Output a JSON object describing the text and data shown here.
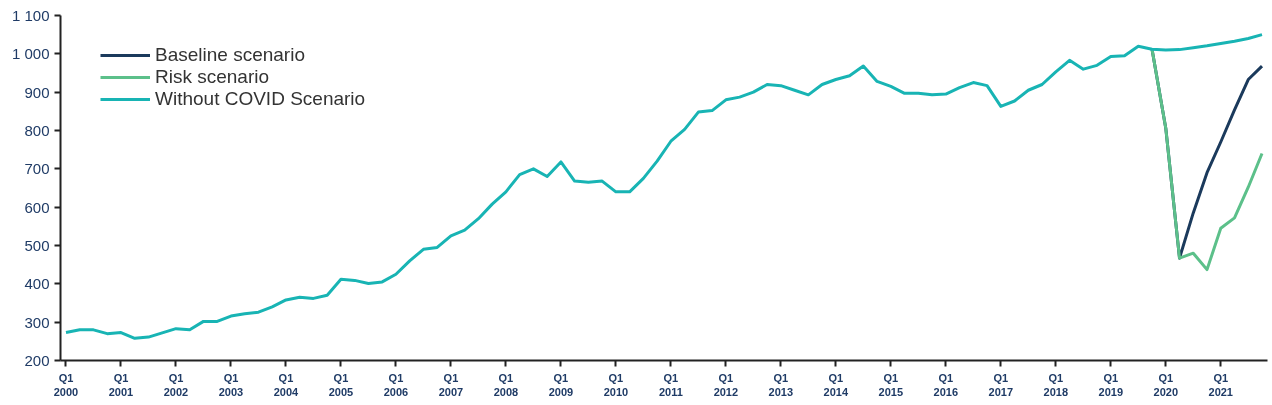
{
  "chart_data": {
    "type": "line",
    "categories": [
      "Q1\n2000",
      null,
      null,
      null,
      "Q1\n2001",
      null,
      null,
      null,
      "Q1\n2002",
      null,
      null,
      null,
      "Q1\n2003",
      null,
      null,
      null,
      "Q1\n2004",
      null,
      null,
      null,
      "Q1\n2005",
      null,
      null,
      null,
      "Q1\n2006",
      null,
      null,
      null,
      "Q1\n2007",
      null,
      null,
      null,
      "Q1\n2008",
      null,
      null,
      null,
      "Q1\n2009",
      null,
      null,
      null,
      "Q1\n2010",
      null,
      null,
      null,
      "Q1\n2011",
      null,
      null,
      null,
      "Q1\n2012",
      null,
      null,
      null,
      "Q1\n2013",
      null,
      null,
      null,
      "Q1\n2014",
      null,
      null,
      null,
      "Q1\n2015",
      null,
      null,
      null,
      "Q1\n2016",
      null,
      null,
      null,
      "Q1\n2017",
      null,
      null,
      null,
      "Q1\n2018",
      null,
      null,
      null,
      "Q1\n2019",
      null,
      null,
      null,
      "Q1\n2020",
      null,
      null,
      null,
      "Q1\n2021",
      null,
      null,
      null
    ],
    "series": [
      {
        "name": "Baseline scenario",
        "color": "#1b3a5c",
        "values": [
          null,
          null,
          null,
          null,
          null,
          null,
          null,
          null,
          null,
          null,
          null,
          null,
          null,
          null,
          null,
          null,
          null,
          null,
          null,
          null,
          null,
          null,
          null,
          null,
          null,
          null,
          null,
          null,
          null,
          null,
          null,
          null,
          null,
          null,
          null,
          null,
          null,
          null,
          null,
          null,
          null,
          null,
          null,
          null,
          null,
          null,
          null,
          null,
          null,
          null,
          null,
          null,
          null,
          null,
          null,
          null,
          null,
          null,
          null,
          null,
          null,
          null,
          null,
          null,
          null,
          null,
          null,
          null,
          null,
          null,
          null,
          null,
          null,
          null,
          null,
          null,
          null,
          null,
          null,
          1012,
          806,
          467,
          585,
          690,
          770,
          854,
          933,
          968
        ]
      },
      {
        "name": "Risk scenario",
        "color": "#5cc08a",
        "values": [
          null,
          null,
          null,
          null,
          null,
          null,
          null,
          null,
          null,
          null,
          null,
          null,
          null,
          null,
          null,
          null,
          null,
          null,
          null,
          null,
          null,
          null,
          null,
          null,
          null,
          null,
          null,
          null,
          null,
          null,
          null,
          null,
          null,
          null,
          null,
          null,
          null,
          null,
          null,
          null,
          null,
          null,
          null,
          null,
          null,
          null,
          null,
          null,
          null,
          null,
          null,
          null,
          null,
          null,
          null,
          null,
          null,
          null,
          null,
          null,
          null,
          null,
          null,
          null,
          null,
          null,
          null,
          null,
          null,
          null,
          null,
          null,
          null,
          null,
          null,
          null,
          null,
          null,
          null,
          1012,
          806,
          467,
          480,
          437,
          545,
          572,
          652,
          740
        ]
      },
      {
        "name": "Without COVID Scenario",
        "color": "#18b4b4",
        "values": [
          273,
          280,
          280,
          270,
          273,
          258,
          261,
          272,
          283,
          280,
          302,
          302,
          316,
          322,
          326,
          340,
          358,
          365,
          362,
          370,
          412,
          409,
          401,
          405,
          425,
          460,
          490,
          495,
          525,
          540,
          570,
          608,
          640,
          685,
          700,
          680,
          718,
          668,
          665,
          668,
          640,
          640,
          675,
          720,
          772,
          803,
          848,
          852,
          880,
          887,
          900,
          920,
          917,
          905,
          893,
          920,
          933,
          943,
          968,
          928,
          915,
          897,
          897,
          893,
          895,
          912,
          925,
          917,
          863,
          877,
          905,
          920,
          953,
          983,
          960,
          970,
          993,
          995,
          1020,
          1012,
          1010,
          1011,
          1016,
          1021,
          1027,
          1033,
          1040,
          1050
        ]
      }
    ],
    "ylim": [
      200,
      1100
    ],
    "yticks": [
      200,
      300,
      400,
      500,
      600,
      700,
      800,
      900,
      {
        "value": 1000,
        "label": "1 000"
      },
      {
        "value": 1100,
        "label": "1 100"
      }
    ],
    "grid": false,
    "legend": "top left",
    "marker": "none",
    "line_style": "solid"
  }
}
